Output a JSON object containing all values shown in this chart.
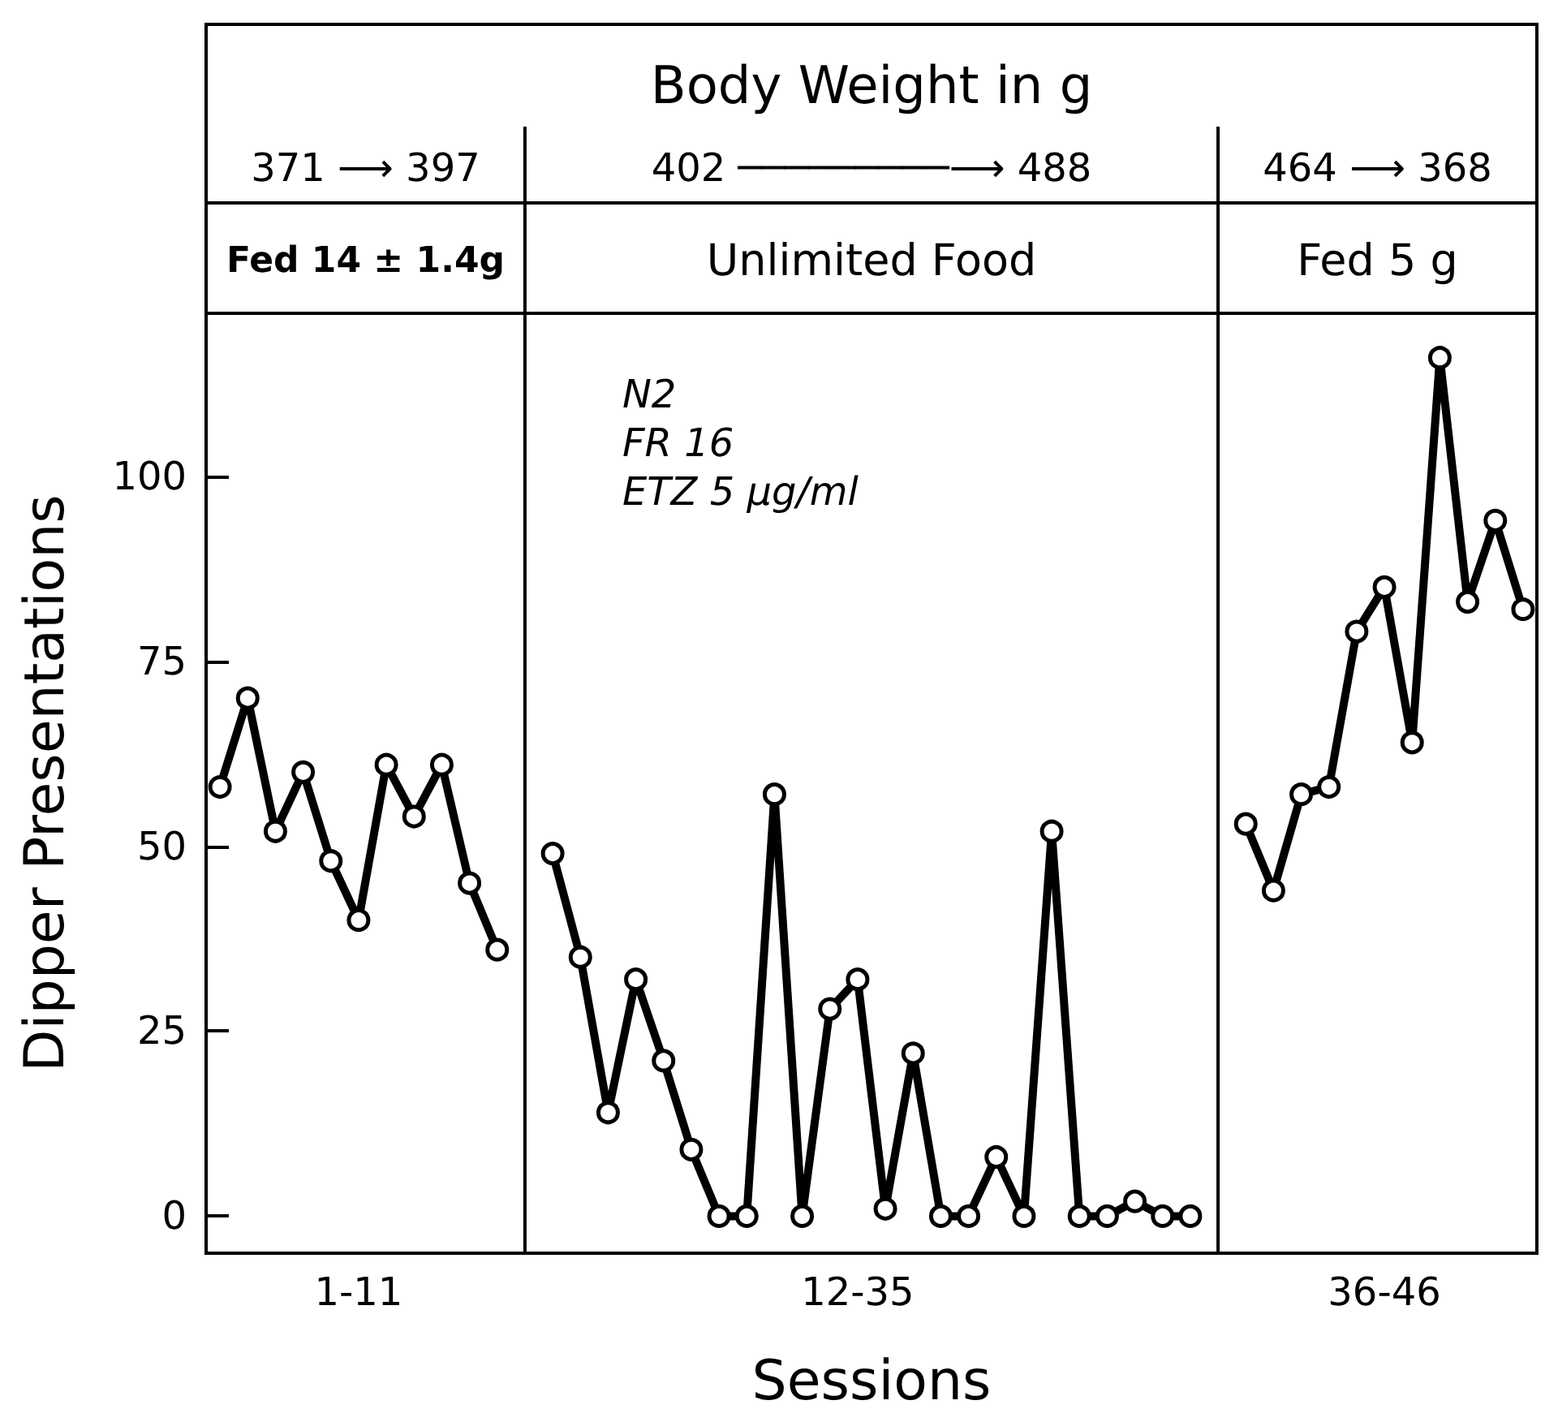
{
  "chart_data": {
    "type": "line",
    "title": "Body Weight in g",
    "xlabel": "Sessions",
    "ylabel": "Dipper Presentations",
    "annotations": [
      "371 ⟶ 397",
      "402 ─────────⟶ 488",
      "464 ⟶ 368",
      "Fed 14 ± 1.4g",
      "Unlimited Food",
      "Fed 5 g",
      "N2\nFR 16\nETZ 5 μg/ml"
    ],
    "categories": [
      null,
      null,
      null,
      null,
      null,
      "1-11",
      null,
      null,
      null,
      null,
      null,
      null,
      null,
      null,
      null,
      null,
      null,
      null,
      null,
      null,
      null,
      null,
      null,
      "12-35",
      null,
      null,
      null,
      null,
      null,
      null,
      null,
      null,
      null,
      null,
      null,
      null,
      null,
      null,
      null,
      null,
      null,
      null,
      "36-46",
      null,
      null,
      null,
      null,
      null
    ],
    "values": [
      58,
      70,
      52,
      60,
      48,
      40,
      61,
      54,
      61,
      45,
      36,
      null,
      49,
      35,
      14,
      32,
      21,
      9,
      0,
      0,
      57,
      0,
      28,
      32,
      1,
      22,
      0,
      0,
      8,
      0,
      52,
      0,
      0,
      2,
      0,
      0,
      null,
      53,
      44,
      57,
      58,
      79,
      85,
      64,
      116,
      83,
      94,
      82
    ],
    "color": "#000000",
    "ylim": [
      -5,
      122
    ],
    "yticks": [
      0,
      25,
      50,
      75,
      100
    ],
    "marker": "circle",
    "line_style": "solid"
  }
}
